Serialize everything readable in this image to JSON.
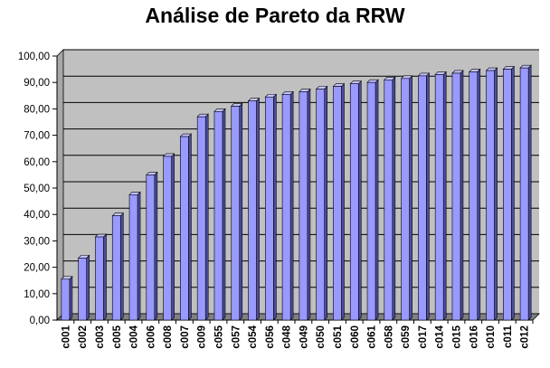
{
  "chart_data": {
    "type": "bar",
    "title": "Análise de Pareto da RRW",
    "xlabel": "",
    "ylabel": "",
    "ylim": [
      0,
      100
    ],
    "yticks": [
      "0,00",
      "10,00",
      "20,00",
      "30,00",
      "40,00",
      "50,00",
      "60,00",
      "70,00",
      "80,00",
      "90,00",
      "100,00"
    ],
    "grid": true,
    "legend": "none",
    "categories": [
      "c001",
      "c002",
      "c003",
      "c005",
      "c004",
      "c006",
      "c008",
      "c007",
      "c009",
      "c055",
      "c057",
      "c054",
      "c056",
      "c048",
      "c049",
      "c050",
      "c051",
      "c060",
      "c061",
      "c058",
      "c059",
      "c017",
      "c014",
      "c015",
      "c016",
      "c010",
      "c011",
      "c012"
    ],
    "values": [
      15.5,
      23.5,
      31.5,
      39.5,
      47.5,
      55.0,
      62.0,
      69.5,
      77.0,
      79.0,
      81.0,
      83.0,
      84.5,
      85.5,
      86.5,
      87.5,
      88.5,
      89.5,
      90.0,
      91.0,
      91.5,
      92.5,
      93.0,
      93.5,
      94.0,
      94.5,
      95.0,
      95.5
    ],
    "colors": {
      "bar_front": "#9999ff",
      "bar_side": "#4d4d9f",
      "bar_top": "#c4c4ff",
      "wall": "#c0c0c0",
      "floor": "#808080",
      "grid": "#000000"
    }
  }
}
